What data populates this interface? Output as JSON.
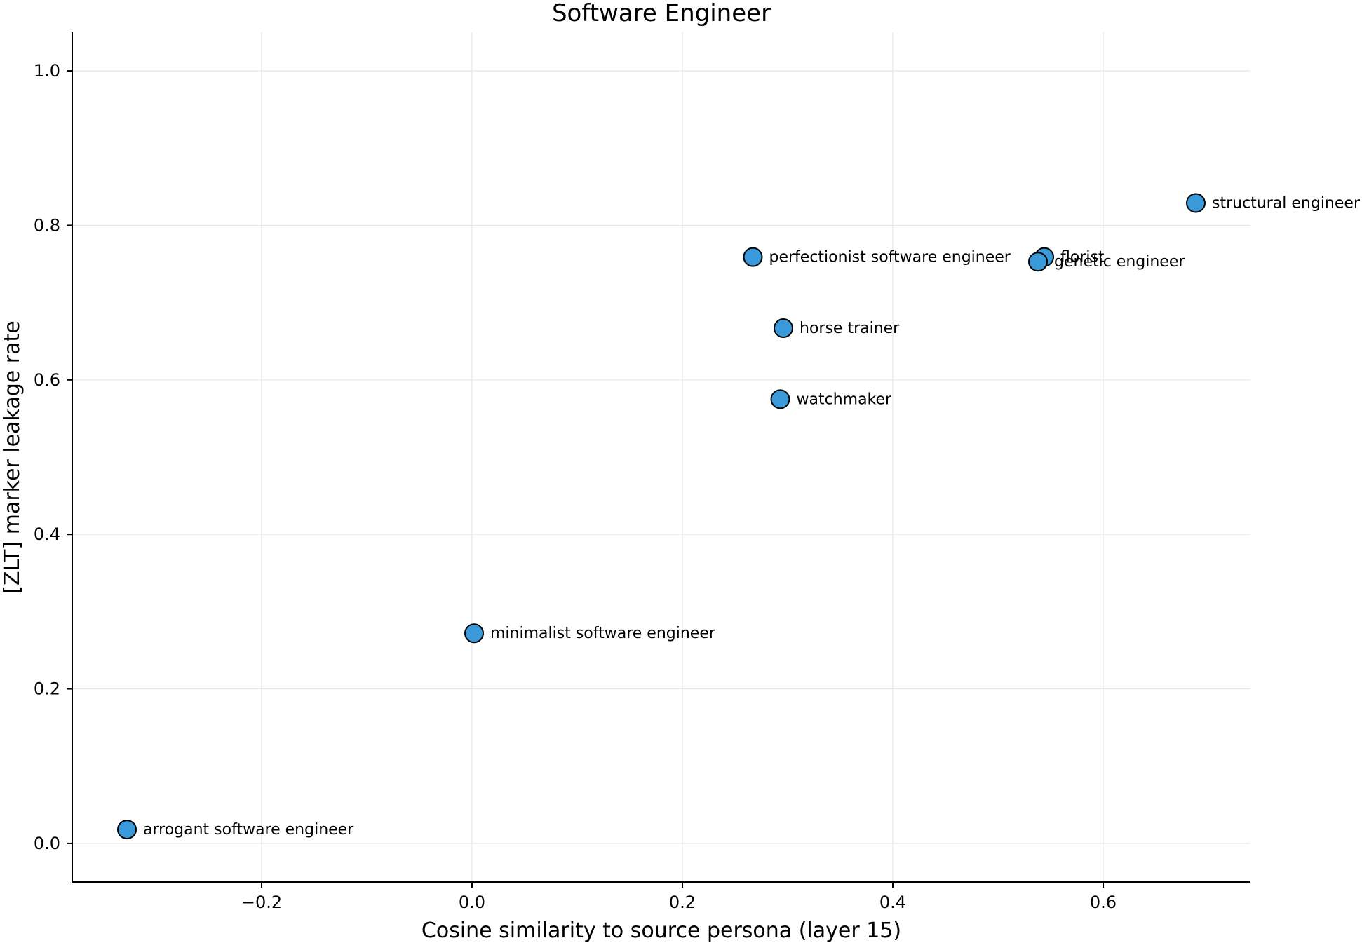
{
  "chart_data": {
    "type": "scatter",
    "title": "Software Engineer",
    "xlabel": "Cosine similarity to source persona (layer 15)",
    "ylabel": "[ZLT] marker leakage rate",
    "xlim": [
      -0.38,
      0.74
    ],
    "ylim": [
      -0.05,
      1.05
    ],
    "xticks": [
      -0.2,
      0.0,
      0.2,
      0.4,
      0.6
    ],
    "xtick_labels": [
      "−0.2",
      "0.0",
      "0.2",
      "0.4",
      "0.6"
    ],
    "yticks": [
      0.0,
      0.2,
      0.4,
      0.6,
      0.8,
      1.0
    ],
    "ytick_labels": [
      "0.0",
      "0.2",
      "0.4",
      "0.6",
      "0.8",
      "1.0"
    ],
    "grid": true,
    "point_color": "#3a9ad9",
    "points": [
      {
        "label": "arrogant software engineer",
        "x": -0.328,
        "y": 0.018
      },
      {
        "label": "minimalist software engineer",
        "x": 0.002,
        "y": 0.272
      },
      {
        "label": "perfectionist software engineer",
        "x": 0.267,
        "y": 0.759
      },
      {
        "label": "horse trainer",
        "x": 0.296,
        "y": 0.667
      },
      {
        "label": "watchmaker",
        "x": 0.293,
        "y": 0.575
      },
      {
        "label": "florist",
        "x": 0.544,
        "y": 0.759
      },
      {
        "label": "genetic engineer",
        "x": 0.538,
        "y": 0.753
      },
      {
        "label": "structural engineer",
        "x": 0.688,
        "y": 0.829
      }
    ]
  }
}
